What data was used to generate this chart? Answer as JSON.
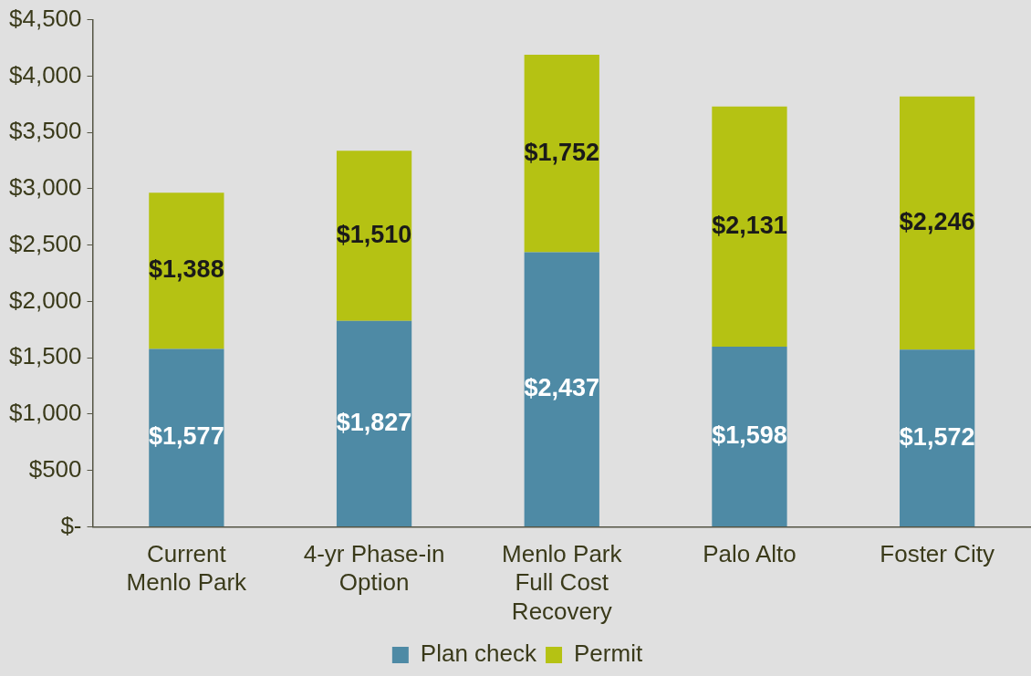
{
  "chart_data": {
    "type": "bar",
    "stacked": true,
    "categories": [
      "Current\nMenlo Park",
      "4-yr Phase-in\nOption",
      "Menlo Park\nFull Cost\nRecovery",
      "Palo Alto",
      "Foster City"
    ],
    "series": [
      {
        "name": "Plan check",
        "color": "#4e8aa5",
        "values": [
          1577,
          1827,
          2437,
          1598,
          1572
        ],
        "value_labels": [
          "$1,577",
          "$1,827",
          "$2,437",
          "$1,598",
          "$1,572"
        ]
      },
      {
        "name": "Permit",
        "color": "#b5c213",
        "values": [
          1388,
          1510,
          1752,
          2131,
          2246
        ],
        "value_labels": [
          "$1,388",
          "$1,510",
          "$1,752",
          "$2,131",
          "$2,246"
        ]
      }
    ],
    "ylim": [
      0,
      4500
    ],
    "yticks": [
      {
        "value": 0,
        "label": "$-"
      },
      {
        "value": 500,
        "label": "$500"
      },
      {
        "value": 1000,
        "label": "$1,000"
      },
      {
        "value": 1500,
        "label": "$1,500"
      },
      {
        "value": 2000,
        "label": "$2,000"
      },
      {
        "value": 2500,
        "label": "$2,500"
      },
      {
        "value": 3000,
        "label": "$3,000"
      },
      {
        "value": 3500,
        "label": "$3,500"
      },
      {
        "value": 4000,
        "label": "$4,000"
      },
      {
        "value": 4500,
        "label": "$4,500"
      }
    ],
    "grid": false,
    "legend": "bottom"
  }
}
